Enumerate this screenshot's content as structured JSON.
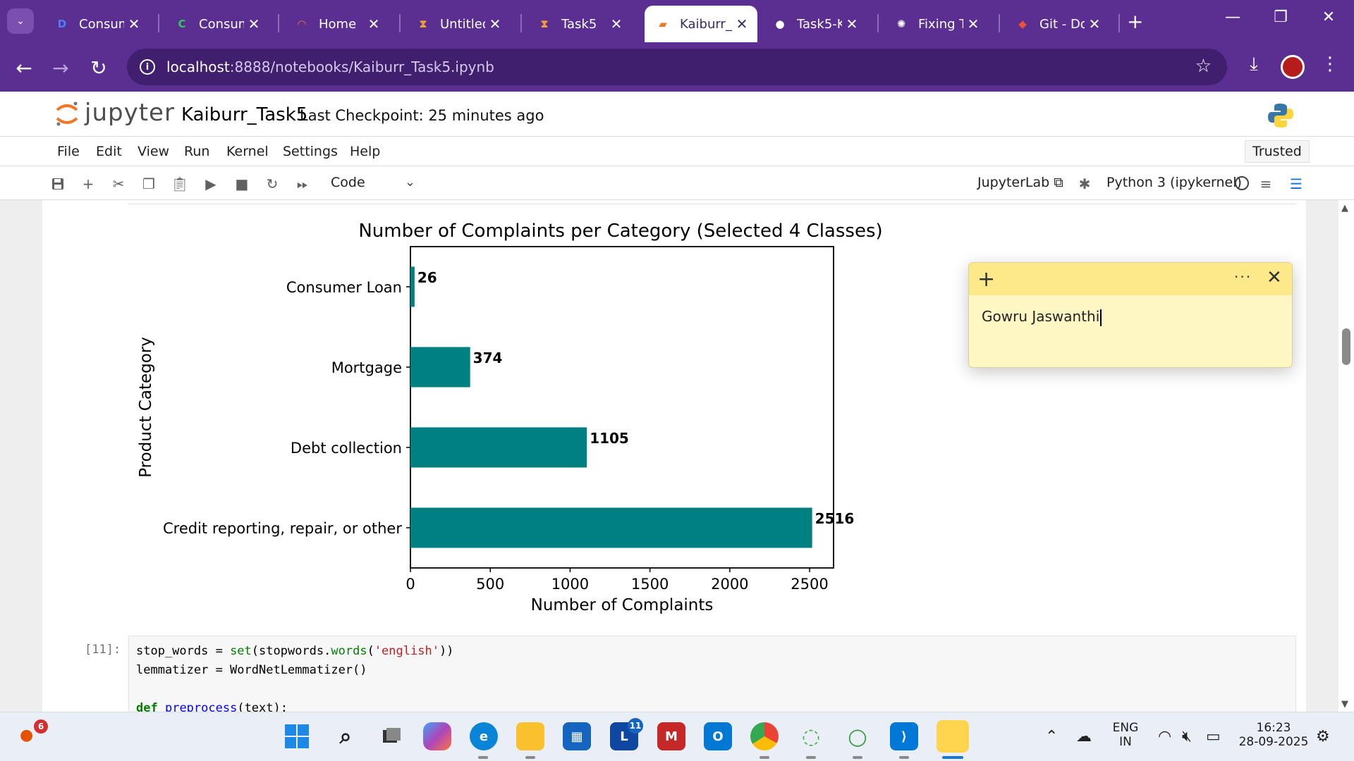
{
  "browser": {
    "tabs": [
      {
        "label": "Consum",
        "icon": "d-logo-icon",
        "color": "#4f7df5",
        "glyph": "D"
      },
      {
        "label": "Consum",
        "icon": "c-logo-icon",
        "color": "#34c759",
        "glyph": "C"
      },
      {
        "label": "Home",
        "icon": "jupyter-icon",
        "color": "#f37626",
        "glyph": "◠"
      },
      {
        "label": "Untitled",
        "icon": "hourglass-icon",
        "color": "#f0a030",
        "glyph": "⧗"
      },
      {
        "label": "Task5",
        "icon": "hourglass-icon",
        "color": "#f0a030",
        "glyph": "⧗"
      },
      {
        "label": "Kaiburr_",
        "icon": "notebook-icon",
        "color": "#f37626",
        "glyph": "▰"
      },
      {
        "label": "Task5-K",
        "icon": "github-icon",
        "color": "#ffffff",
        "glyph": "●"
      },
      {
        "label": "Fixing T",
        "icon": "chatgpt-icon",
        "color": "#ffffff",
        "glyph": "✺"
      },
      {
        "label": "Git - Do",
        "icon": "git-icon",
        "color": "#f05033",
        "glyph": "◆"
      }
    ],
    "url_host": "localhost",
    "url_path": ":8888/notebooks/Kaiburr_Task5.ipynb"
  },
  "jupyter": {
    "logo_text": "jupyter",
    "notebook_title": "Kaiburr_Task5",
    "checkpoint": "Last Checkpoint: 25 minutes ago",
    "menu": [
      "File",
      "Edit",
      "View",
      "Run",
      "Kernel",
      "Settings",
      "Help"
    ],
    "trusted": "Trusted",
    "cell_type": "Code",
    "jupyterlab_link": "JupyterLab",
    "kernel": "Python 3 (ipykernel)"
  },
  "chart_data": {
    "type": "bar",
    "orientation": "horizontal",
    "title": "Number of Complaints per Category (Selected 4 Classes)",
    "xlabel": "Number of Complaints",
    "ylabel": "Product Category",
    "categories": [
      "Consumer Loan",
      "Mortgage",
      "Debt collection",
      "Credit reporting, repair, or other"
    ],
    "values": [
      26,
      374,
      1105,
      2516
    ],
    "xlim": [
      0,
      2650
    ],
    "xticks": [
      0,
      500,
      1000,
      1500,
      2000,
      2500
    ],
    "bar_color": "#008080",
    "grid": false
  },
  "code_cell": {
    "prompt": "[11]:",
    "line1_var": "stop_words = ",
    "line1_func": "set",
    "line1_mid": "(stopwords.",
    "line1_func2": "words",
    "line1_open": "(",
    "line1_str": "'english'",
    "line1_close": "))",
    "line2": "lemmatizer = WordNetLemmatizer()",
    "line3_def": "def",
    "line3_name": "preprocess",
    "line3_rest": "(text):"
  },
  "sticky_note": {
    "text": "Gowru Jaswanthi"
  },
  "taskbar": {
    "notification_count": "6",
    "lang_line1": "ENG",
    "lang_line2": "IN",
    "time": "16:23",
    "date": "28-09-2025",
    "app_badge": "11"
  }
}
